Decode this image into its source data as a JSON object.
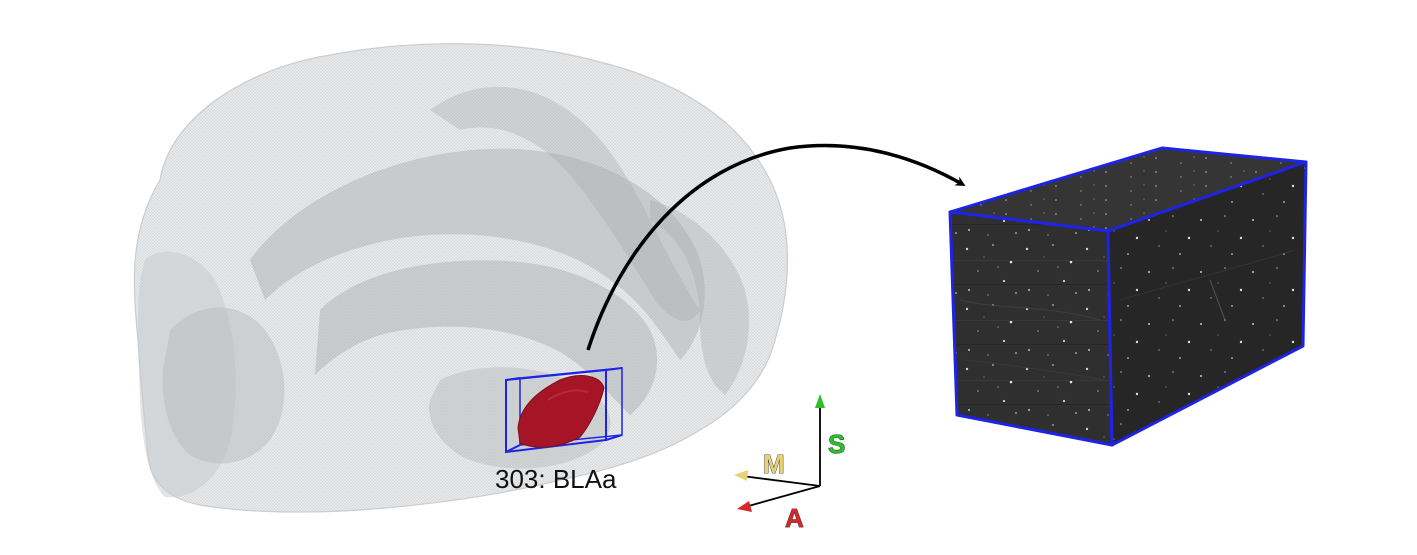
{
  "region": {
    "label": "303: BLAa"
  },
  "axes": {
    "superior": {
      "letter": "S",
      "color": "#2bbf2b"
    },
    "medial": {
      "letter": "M",
      "color": "#e7d27a"
    },
    "anterior": {
      "letter": "A",
      "color": "#d8262a"
    }
  },
  "colors": {
    "brain_fill": "#e3e5e6",
    "brain_inner": "#b9bcbe",
    "region_fill": "#a51526",
    "bounding_box": "#1f23e6",
    "volume_fill": "#2c2c2c",
    "arrow": "#000000"
  }
}
